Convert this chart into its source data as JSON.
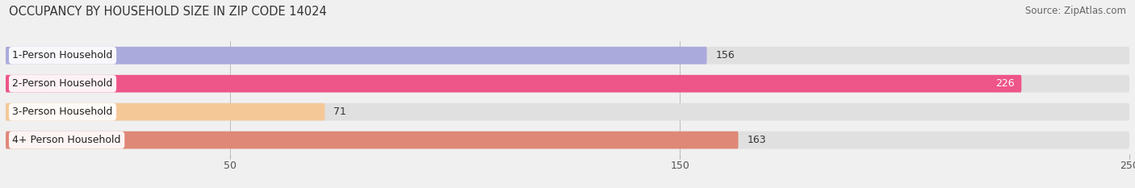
{
  "title": "OCCUPANCY BY HOUSEHOLD SIZE IN ZIP CODE 14024",
  "source": "Source: ZipAtlas.com",
  "categories": [
    "1-Person Household",
    "2-Person Household",
    "3-Person Household",
    "4+ Person Household"
  ],
  "values": [
    156,
    226,
    71,
    163
  ],
  "bar_colors": [
    "#aaaadd",
    "#ee5588",
    "#f5c898",
    "#e08878"
  ],
  "bg_bar_color": "#e0e0e0",
  "label_colors": [
    "#333333",
    "#ffffff",
    "#333333",
    "#333333"
  ],
  "xlim": [
    0,
    250
  ],
  "xticks": [
    50,
    150,
    250
  ],
  "background_color": "#f0f0f0",
  "title_fontsize": 10.5,
  "source_fontsize": 8.5,
  "tick_fontsize": 9,
  "label_fontsize": 9,
  "value_fontsize": 9
}
